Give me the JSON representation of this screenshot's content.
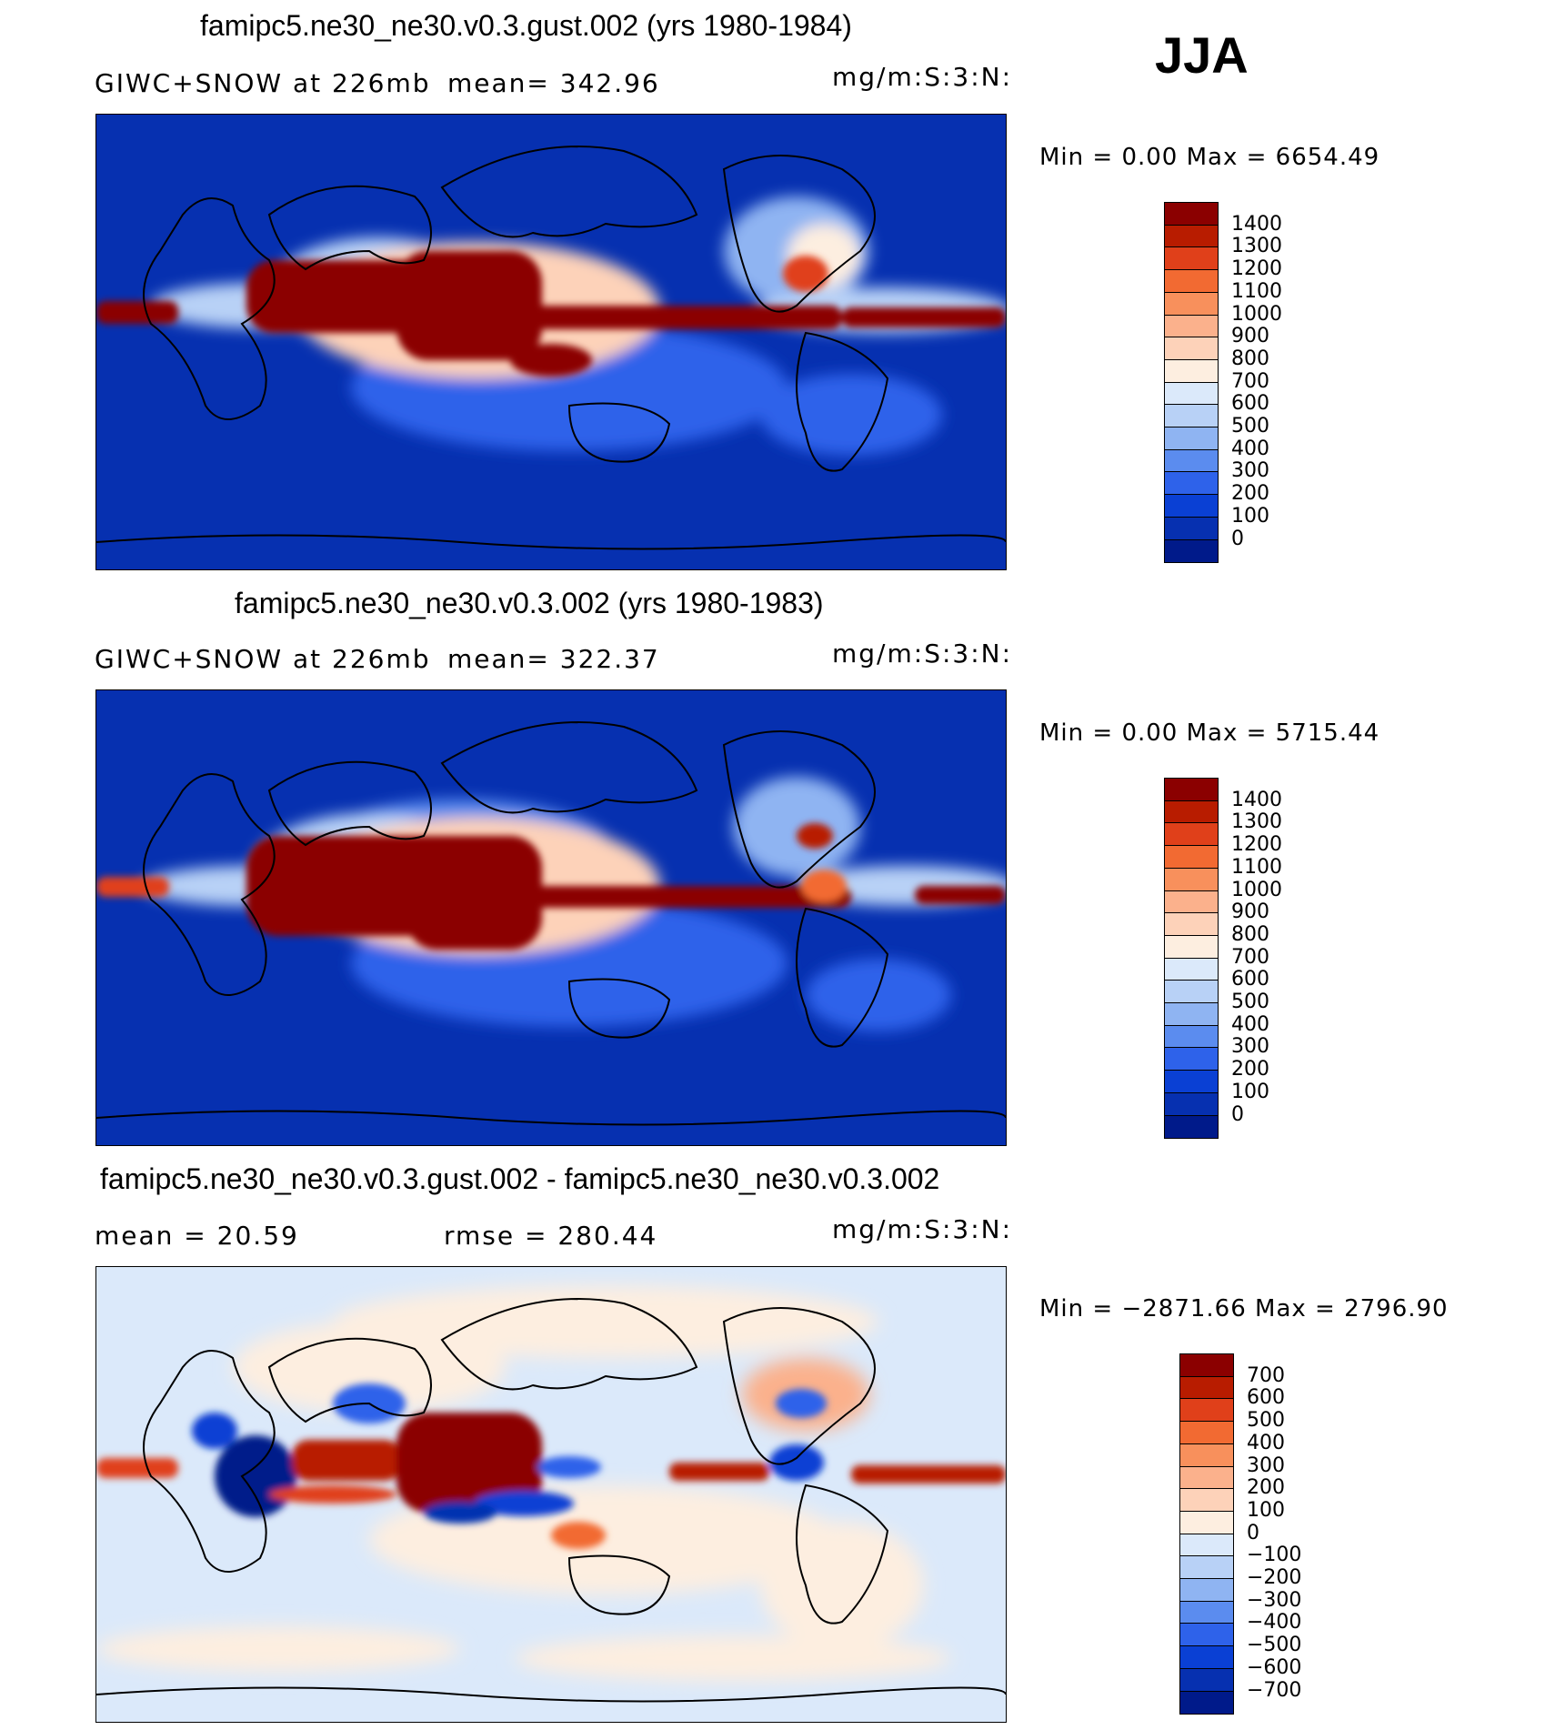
{
  "season": "JJA",
  "panels": [
    {
      "title": "famipc5.ne30_ne30.v0.3.gust.002 (yrs 1980-1984)",
      "left_label": "GIWC+SNOW at 226mb",
      "stat_label": "mean= 342.96",
      "units": "mg/m:S:3:N:",
      "minmax": "Min =   0.00 Max = 6654.49",
      "palette": "abs",
      "levels": [
        "1400",
        "1300",
        "1200",
        "1100",
        "1000",
        "900",
        "800",
        "700",
        "600",
        "500",
        "400",
        "300",
        "200",
        "100",
        "0"
      ]
    },
    {
      "title": "famipc5.ne30_ne30.v0.3.002 (yrs 1980-1983)",
      "left_label": "GIWC+SNOW at 226mb",
      "stat_label": "mean= 322.37",
      "units": "mg/m:S:3:N:",
      "minmax": "Min =   0.00 Max = 5715.44",
      "palette": "abs",
      "levels": [
        "1400",
        "1300",
        "1200",
        "1100",
        "1000",
        "900",
        "800",
        "700",
        "600",
        "500",
        "400",
        "300",
        "200",
        "100",
        "0"
      ]
    },
    {
      "title": "famipc5.ne30_ne30.v0.3.gust.002 - famipc5.ne30_ne30.v0.3.002",
      "left_label": "mean =  20.59",
      "stat_label": "rmse = 280.44",
      "units": "mg/m:S:3:N:",
      "minmax": "Min = −2871.66 Max = 2796.90",
      "palette": "diff",
      "levels": [
        "700",
        "600",
        "500",
        "400",
        "300",
        "200",
        "100",
        "0",
        "−100",
        "−200",
        "−300",
        "−400",
        "−500",
        "−600",
        "−700"
      ]
    }
  ],
  "colors": {
    "abs": [
      "#8b0000",
      "#b81c00",
      "#e0401a",
      "#f26a32",
      "#f8905c",
      "#fbb18c",
      "#fdd2b9",
      "#fdeee0",
      "#dbe9fa",
      "#b8d1f6",
      "#8fb4f2",
      "#5b8cef",
      "#2e62ea",
      "#0a40d4",
      "#0630b0",
      "#001a8a"
    ],
    "diff": [
      "#8b0000",
      "#b81c00",
      "#e0401a",
      "#f26a32",
      "#f8905c",
      "#fbb18c",
      "#fdd2b9",
      "#fdeee0",
      "#dbe9fa",
      "#b8d1f6",
      "#8fb4f2",
      "#5b8cef",
      "#2e62ea",
      "#0a40d4",
      "#0630b0",
      "#001a8a"
    ],
    "ocean_background": "#0630b0",
    "diff_background": "#dbe9fa"
  }
}
